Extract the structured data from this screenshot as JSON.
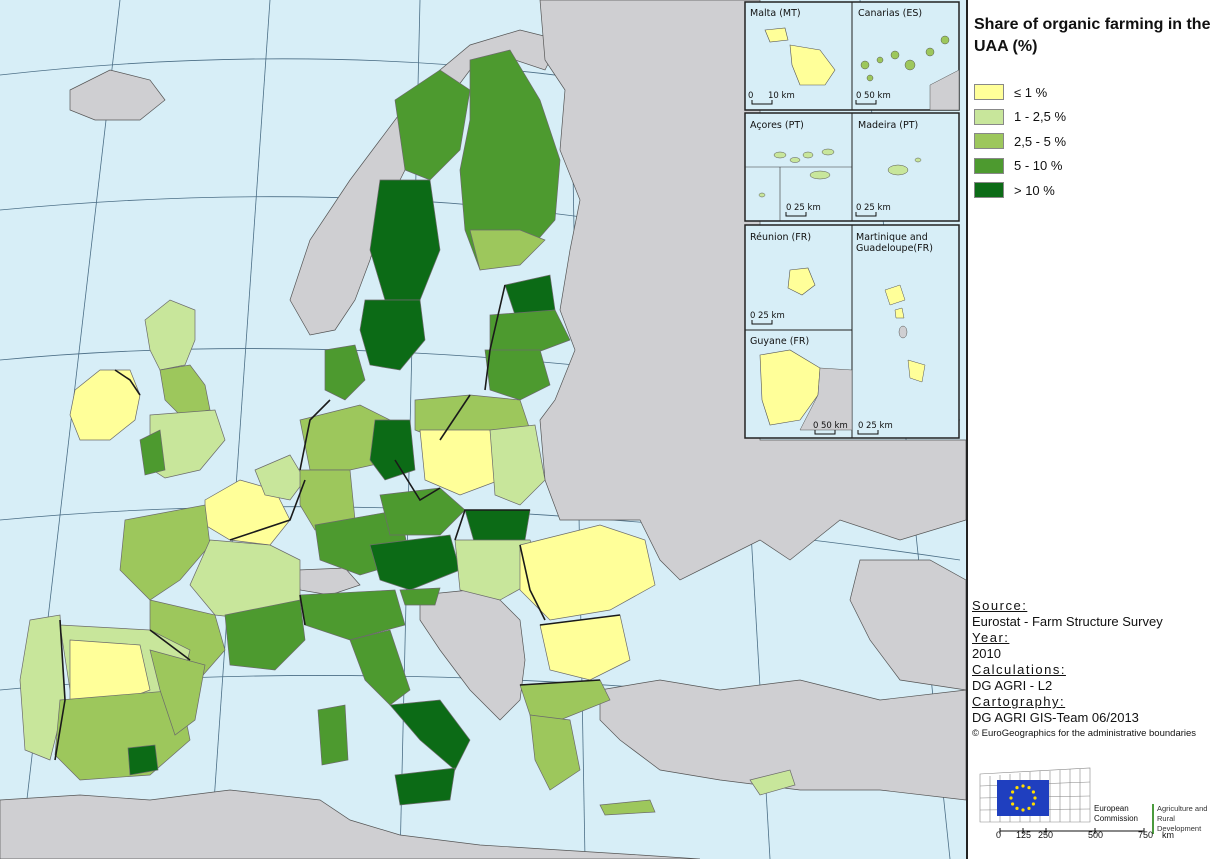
{
  "title": "Share of organic farming in the UAA (%)",
  "legend": [
    {
      "label": "≤ 1 %",
      "color": "#ffff99"
    },
    {
      "label": "1 - 2,5 %",
      "color": "#c8e69b"
    },
    {
      "label": "2,5 - 5 %",
      "color": "#9dc75c"
    },
    {
      "label": "5 - 10 %",
      "color": "#4d9a2f"
    },
    {
      "label": "> 10 %",
      "color": "#0c6b16"
    }
  ],
  "colors": {
    "sea": "#d7eef7",
    "non_eu": "#cfcfd2",
    "border": "#1a1a1a",
    "region_line": "#6b6b6b"
  },
  "insets": [
    {
      "name": "Malta (MT)",
      "scale": "10 km",
      "zero": "0"
    },
    {
      "name": "Canarias (ES)",
      "scale": "50 km",
      "zero": "0"
    },
    {
      "name": "Açores (PT)",
      "scale": "25 km",
      "zero": "0"
    },
    {
      "name": "Madeira (PT)",
      "scale": "25 km",
      "zero": "0"
    },
    {
      "name": "Réunion (FR)",
      "scale": "25 km",
      "zero": "0"
    },
    {
      "name": "Martinique and",
      "name2": "Guadeloupe(FR)",
      "scale": "25 km",
      "zero": "0"
    },
    {
      "name": "Guyane (FR)",
      "scale": "50 km",
      "zero": "0"
    }
  ],
  "source_head": "Source:",
  "source": "Eurostat - Farm Structure Survey",
  "year_head": "Year:",
  "year": "2010",
  "calc_head": "Calculations:",
  "calc": "DG AGRI - L2",
  "carto_head": "Cartography:",
  "carto": "DG AGRI GIS-Team 06/2013",
  "copyright": "© EuroGeographics for the administrative boundaries",
  "logo": {
    "ec_line1": "European",
    "ec_line2": "Commission",
    "agri_line1": "Agriculture and",
    "agri_line2": "Rural Development"
  },
  "scale_bar": [
    "0",
    "125",
    "250",
    "500",
    "750",
    "km"
  ]
}
